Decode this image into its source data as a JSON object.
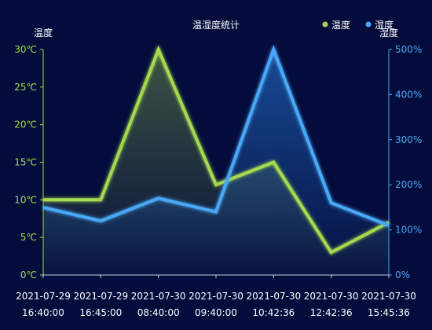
{
  "chart_data": {
    "type": "line",
    "title": "温湿度统计",
    "categories": [
      [
        "2021-07-29",
        "16:40:00"
      ],
      [
        "2021-07-29",
        "16:45:00"
      ],
      [
        "2021-07-30",
        "08:40:00"
      ],
      [
        "2021-07-30",
        "09:40:00"
      ],
      [
        "2021-07-30",
        "10:42:36"
      ],
      [
        "2021-07-30",
        "12:42:36"
      ],
      [
        "2021-07-30",
        "15:45:36"
      ]
    ],
    "y_left": {
      "name": "温度",
      "min": 0,
      "max": 30,
      "interval": 5,
      "unit": "℃",
      "ticks": [
        "0℃",
        "5℃",
        "10℃",
        "15℃",
        "20℃",
        "25℃",
        "30℃"
      ],
      "color": "#a5d94f"
    },
    "y_right": {
      "name": "湿度",
      "min": 0,
      "max": 500,
      "interval": 100,
      "unit": "%",
      "ticks": [
        "0%",
        "100%",
        "200%",
        "300%",
        "400%",
        "500%"
      ],
      "color": "#4aa8f5"
    },
    "series": [
      {
        "name": "温度",
        "axis": "left",
        "color": "#a5d94f",
        "values": [
          10,
          10,
          30,
          12,
          15,
          3,
          7
        ]
      },
      {
        "name": "湿度",
        "axis": "right",
        "color": "#4aa8f5",
        "values": [
          150,
          120,
          170,
          140,
          500,
          160,
          110
        ]
      }
    ],
    "legend": {
      "position": "top-right",
      "items": [
        "温度",
        "湿度"
      ]
    },
    "grid": false
  }
}
